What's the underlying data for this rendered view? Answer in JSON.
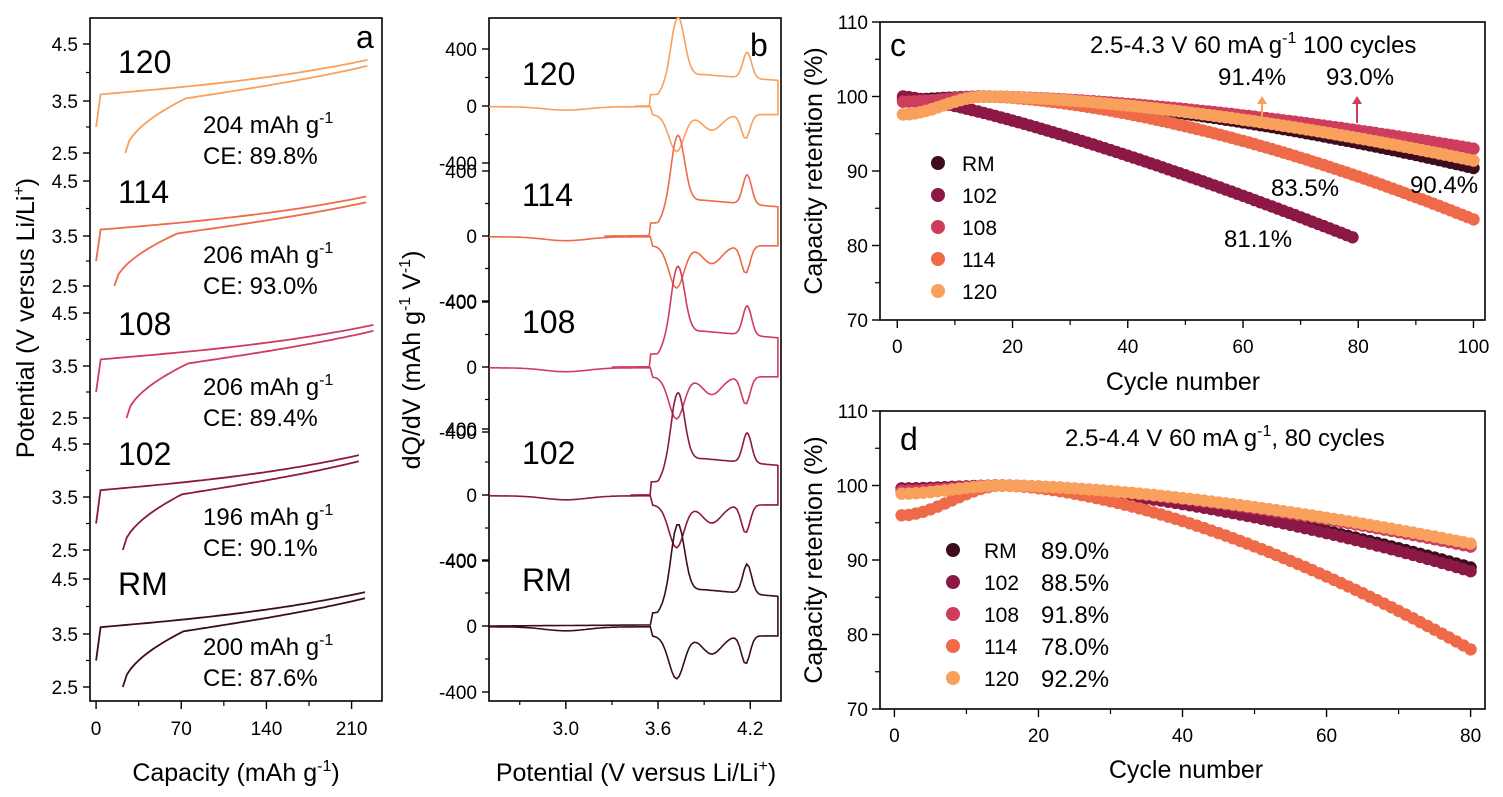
{
  "colors": {
    "RM": "#3d0d1e",
    "102": "#8c1846",
    "108": "#cf3d5e",
    "114": "#ee6a48",
    "120": "#f8a05c"
  },
  "chart_data": [
    {
      "panel": "a",
      "type": "line",
      "xlabel": "Capacity (mAh g",
      "xlabel_sup": "-1",
      "xlabel_end": ")",
      "ylabel": "Potential (V versus Li/Li",
      "ylabel_sup": "+",
      "ylabel_end": ")",
      "xlim": [
        -5,
        235
      ],
      "xticks": [
        "0",
        "70",
        "140",
        "210"
      ],
      "ytick_labels": [
        "2.5",
        "3.5",
        "4.5"
      ],
      "samples": [
        {
          "name": "120",
          "capacity": "204 mAh g",
          "sup": "-1",
          "ce": "CE: 89.8%"
        },
        {
          "name": "114",
          "capacity": "206 mAh g",
          "sup": "-1",
          "ce": "CE: 93.0%"
        },
        {
          "name": "108",
          "capacity": "206 mAh g",
          "sup": "-1",
          "ce": "CE: 89.4%"
        },
        {
          "name": "102",
          "capacity": "196 mAh g",
          "sup": "-1",
          "ce": "CE: 90.1%"
        },
        {
          "name": "RM",
          "capacity": "200 mAh g",
          "sup": "-1",
          "ce": "CE: 87.6%"
        }
      ]
    },
    {
      "panel": "b",
      "type": "line",
      "xlabel": "Potential (V versus Li/Li",
      "xlabel_sup": "+",
      "xlabel_end": ")",
      "ylabel": "dQ/dV (mAh g",
      "ylabel_sup1": "-1",
      "ylabel_mid": " V",
      "ylabel_sup2": "-1",
      "ylabel_end": ")",
      "xlim": [
        2.5,
        4.4
      ],
      "xticks": [
        "3.0",
        "3.6",
        "4.2"
      ],
      "ytick_labels": [
        "-400",
        "0",
        "400"
      ],
      "samples": [
        "120",
        "114",
        "108",
        "102",
        "RM"
      ]
    },
    {
      "panel": "c",
      "type": "scatter",
      "title": "2.5-4.3 V  60 mA g",
      "title_sup": "-1",
      "title_end": " 100 cycles",
      "xlabel": "Cycle number",
      "ylabel": "Capacity retention (%)",
      "xlim": [
        -3,
        102
      ],
      "ylim": [
        70,
        110
      ],
      "xticks": [
        0,
        20,
        40,
        60,
        80,
        100
      ],
      "yticks": [
        70,
        80,
        90,
        100,
        110
      ],
      "legend": [
        "RM",
        "102",
        "108",
        "114",
        "120"
      ],
      "series": [
        {
          "name": "RM",
          "start": 99.6,
          "peak": 100.0,
          "end": 90.4,
          "cycles": 100
        },
        {
          "name": "102",
          "start": 100.0,
          "peak": 100.0,
          "end": 81.1,
          "cycles": 79
        },
        {
          "name": "108",
          "start": 99.3,
          "peak": 100.0,
          "end": 93.0,
          "cycles": 100
        },
        {
          "name": "114",
          "start": 97.6,
          "peak": 100.0,
          "end": 83.5,
          "cycles": 100
        },
        {
          "name": "120",
          "start": 97.6,
          "peak": 100.0,
          "end": 91.4,
          "cycles": 100
        }
      ],
      "annotations": [
        {
          "text": "91.4%",
          "series": "120"
        },
        {
          "text": "93.0%",
          "series": "108"
        },
        {
          "text": "83.5%",
          "series": "114"
        },
        {
          "text": "90.4%",
          "series": "RM"
        },
        {
          "text": "81.1%",
          "series": "102"
        }
      ]
    },
    {
      "panel": "d",
      "type": "scatter",
      "title": "2.5-4.4 V  60 mA g",
      "title_sup": "-1",
      "title_end": ", 80 cycles",
      "xlabel": "Cycle number",
      "ylabel": "Capacity retention (%)",
      "xlim": [
        -2,
        82
      ],
      "ylim": [
        70,
        110
      ],
      "xticks": [
        0,
        20,
        40,
        60,
        80
      ],
      "yticks": [
        70,
        80,
        90,
        100,
        110
      ],
      "series": [
        {
          "name": "RM",
          "start": 99.6,
          "peak": 100.0,
          "end": 89.0,
          "cycles": 80,
          "label": "89.0%"
        },
        {
          "name": "102",
          "start": 99.6,
          "peak": 100.0,
          "end": 88.5,
          "cycles": 80,
          "label": "88.5%"
        },
        {
          "name": "108",
          "start": 99.3,
          "peak": 100.0,
          "end": 91.8,
          "cycles": 80,
          "label": "91.8%"
        },
        {
          "name": "114",
          "start": 96.0,
          "peak": 100.0,
          "end": 78.0,
          "cycles": 80,
          "label": "78.0%"
        },
        {
          "name": "120",
          "start": 98.9,
          "peak": 100.0,
          "end": 92.2,
          "cycles": 80,
          "label": "92.2%"
        }
      ]
    }
  ]
}
